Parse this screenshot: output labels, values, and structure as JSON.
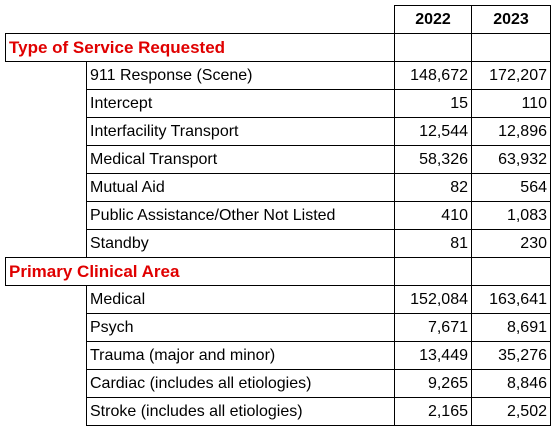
{
  "header": {
    "year_1": "2022",
    "year_2": "2023"
  },
  "sections": [
    {
      "title": "Type of Service Requested",
      "rows": [
        {
          "label": "911 Response (Scene)",
          "v2022": "148,672",
          "v2023": "172,207"
        },
        {
          "label": "Intercept",
          "v2022": "15",
          "v2023": "110"
        },
        {
          "label": "Interfacility Transport",
          "v2022": "12,544",
          "v2023": "12,896"
        },
        {
          "label": "Medical Transport",
          "v2022": "58,326",
          "v2023": "63,932"
        },
        {
          "label": "Mutual Aid",
          "v2022": "82",
          "v2023": "564"
        },
        {
          "label": "Public Assistance/Other Not Listed",
          "v2022": "410",
          "v2023": "1,083"
        },
        {
          "label": "Standby",
          "v2022": "81",
          "v2023": "230"
        }
      ]
    },
    {
      "title": "Primary Clinical Area",
      "rows": [
        {
          "label": "Medical",
          "v2022": "152,084",
          "v2023": "163,641"
        },
        {
          "label": "Psych",
          "v2022": "7,671",
          "v2023": "8,691"
        },
        {
          "label": "Trauma (major and minor)",
          "v2022": "13,449",
          "v2023": "35,276"
        },
        {
          "label": "Cardiac (includes all etiologies)",
          "v2022": "9,265",
          "v2023": "8,846"
        },
        {
          "label": "Stroke (includes all etiologies)",
          "v2022": "2,165",
          "v2023": "2,502"
        }
      ]
    }
  ],
  "colors": {
    "section_title": "#e00000",
    "border": "#000000"
  }
}
